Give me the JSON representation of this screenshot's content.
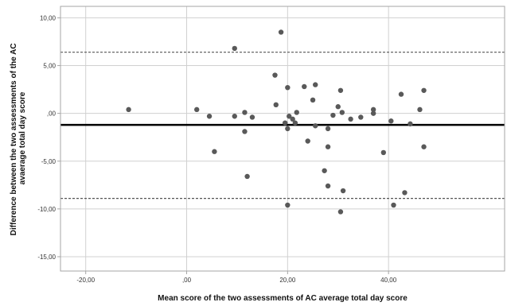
{
  "chart_data": {
    "type": "scatter",
    "title": "",
    "xlabel": "Mean score of the two assessments of AC average total day score",
    "ylabel_lines": [
      "Difference between the two assessments of the AC",
      "avaerage total day score"
    ],
    "xlim": [
      -25,
      63
    ],
    "ylim": [
      -16.5,
      11.2
    ],
    "x_ticks": [
      {
        "value": -20,
        "label": "-20,00"
      },
      {
        "value": 0,
        "label": ",00"
      },
      {
        "value": 20,
        "label": "20,00"
      },
      {
        "value": 40,
        "label": "40,00"
      }
    ],
    "y_ticks": [
      {
        "value": 10,
        "label": "10,00"
      },
      {
        "value": 5,
        "label": "5,00"
      },
      {
        "value": 0,
        "label": ",00"
      },
      {
        "value": -5,
        "label": "-5,00"
      },
      {
        "value": -10,
        "label": "-10,00"
      },
      {
        "value": -15,
        "label": "-15,00"
      }
    ],
    "grid": true,
    "reference_lines": [
      {
        "y": 6.4,
        "style": "dashed"
      },
      {
        "y": -1.2,
        "style": "solid"
      },
      {
        "y": -8.9,
        "style": "dashed"
      }
    ],
    "points": [
      {
        "x": -11.5,
        "y": 0.4
      },
      {
        "x": 2.0,
        "y": 0.4
      },
      {
        "x": 4.5,
        "y": -0.3
      },
      {
        "x": 5.5,
        "y": -4.0
      },
      {
        "x": 9.5,
        "y": 6.8
      },
      {
        "x": 9.5,
        "y": -0.3
      },
      {
        "x": 11.5,
        "y": 0.1
      },
      {
        "x": 11.5,
        "y": -1.9
      },
      {
        "x": 12.0,
        "y": -6.6
      },
      {
        "x": 13.0,
        "y": -0.4
      },
      {
        "x": 17.5,
        "y": 4.0
      },
      {
        "x": 17.7,
        "y": 0.9
      },
      {
        "x": 18.7,
        "y": 8.5
      },
      {
        "x": 19.5,
        "y": -1.0
      },
      {
        "x": 20.0,
        "y": 2.7
      },
      {
        "x": 20.0,
        "y": -1.6
      },
      {
        "x": 20.0,
        "y": -9.6
      },
      {
        "x": 20.3,
        "y": -0.3
      },
      {
        "x": 21.0,
        "y": -0.6
      },
      {
        "x": 21.5,
        "y": -1.0
      },
      {
        "x": 21.8,
        "y": 0.1
      },
      {
        "x": 23.3,
        "y": 2.8
      },
      {
        "x": 24.0,
        "y": -2.9
      },
      {
        "x": 25.0,
        "y": 1.4
      },
      {
        "x": 25.5,
        "y": 3.0
      },
      {
        "x": 25.5,
        "y": -1.3
      },
      {
        "x": 27.3,
        "y": -6.0
      },
      {
        "x": 28.0,
        "y": -1.6
      },
      {
        "x": 28.0,
        "y": -3.5
      },
      {
        "x": 28.0,
        "y": -7.6
      },
      {
        "x": 29.0,
        "y": -0.2
      },
      {
        "x": 30.0,
        "y": 0.7
      },
      {
        "x": 30.5,
        "y": 2.4
      },
      {
        "x": 30.5,
        "y": -10.3
      },
      {
        "x": 30.8,
        "y": 0.1
      },
      {
        "x": 31.0,
        "y": -8.1
      },
      {
        "x": 32.5,
        "y": -0.6
      },
      {
        "x": 34.5,
        "y": -0.4
      },
      {
        "x": 37.0,
        "y": 0.4
      },
      {
        "x": 37.0,
        "y": 0.0
      },
      {
        "x": 39.0,
        "y": -4.1
      },
      {
        "x": 40.5,
        "y": -0.8
      },
      {
        "x": 41.0,
        "y": -9.6
      },
      {
        "x": 42.5,
        "y": 2.0
      },
      {
        "x": 43.2,
        "y": -8.3
      },
      {
        "x": 44.3,
        "y": -1.1
      },
      {
        "x": 46.2,
        "y": 0.4
      },
      {
        "x": 47.0,
        "y": 2.4
      },
      {
        "x": 47.0,
        "y": -3.5
      }
    ],
    "colors": {
      "point": "#595959",
      "grid": "#d0d0d0",
      "frame": "#a6a6a6",
      "mean_line": "#000000",
      "limit_line": "#555555"
    }
  }
}
